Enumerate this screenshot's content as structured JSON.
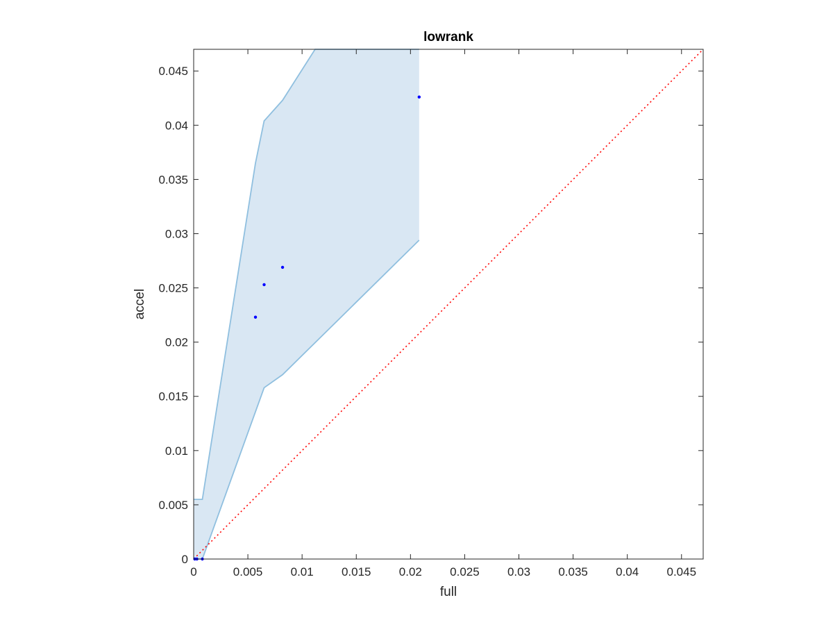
{
  "chart_data": {
    "type": "scatter",
    "title": "lowrank",
    "xlabel": "full",
    "ylabel": "accel",
    "xlim": [
      0,
      0.047
    ],
    "ylim": [
      0,
      0.047
    ],
    "x_ticks": [
      0,
      0.005,
      0.01,
      0.015,
      0.02,
      0.025,
      0.03,
      0.035,
      0.04,
      0.045
    ],
    "x_tick_labels": [
      "0",
      "0.005",
      "0.01",
      "0.015",
      "0.02",
      "0.025",
      "0.03",
      "0.035",
      "0.04",
      "0.045"
    ],
    "y_ticks": [
      0,
      0.005,
      0.01,
      0.015,
      0.02,
      0.025,
      0.03,
      0.035,
      0.04,
      0.045
    ],
    "y_tick_labels": [
      "0",
      "0.005",
      "0.01",
      "0.015",
      "0.02",
      "0.025",
      "0.03",
      "0.035",
      "0.04",
      "0.045"
    ],
    "grid": false,
    "series": [
      {
        "kind": "points",
        "color": "#0000ff",
        "points": [
          [
            0.0001,
            0
          ],
          [
            0.0003,
            0
          ],
          [
            0.0008,
            0
          ],
          [
            0.0057,
            0.0223
          ],
          [
            0.0065,
            0.0253
          ],
          [
            0.0082,
            0.0269
          ],
          [
            0.0208,
            0.0426
          ]
        ]
      },
      {
        "kind": "band",
        "fill": "#d9e7f3",
        "stroke": "#8fbfdf",
        "upper": [
          [
            0,
            0.0055
          ],
          [
            0.0008,
            0.0055
          ],
          [
            0.0057,
            0.0365
          ],
          [
            0.0065,
            0.0404
          ],
          [
            0.0082,
            0.0423
          ],
          [
            0.0112,
            0.047
          ],
          [
            0.0208,
            0.047
          ]
        ],
        "lower": [
          [
            0,
            0
          ],
          [
            0.0008,
            0
          ],
          [
            0.0065,
            0.0158
          ],
          [
            0.0082,
            0.017
          ],
          [
            0.0208,
            0.0294
          ]
        ]
      },
      {
        "kind": "reference-line",
        "style": "dotted",
        "color": "#ff0000",
        "from": [
          0,
          0
        ],
        "to": [
          0.047,
          0.047
        ]
      }
    ]
  }
}
